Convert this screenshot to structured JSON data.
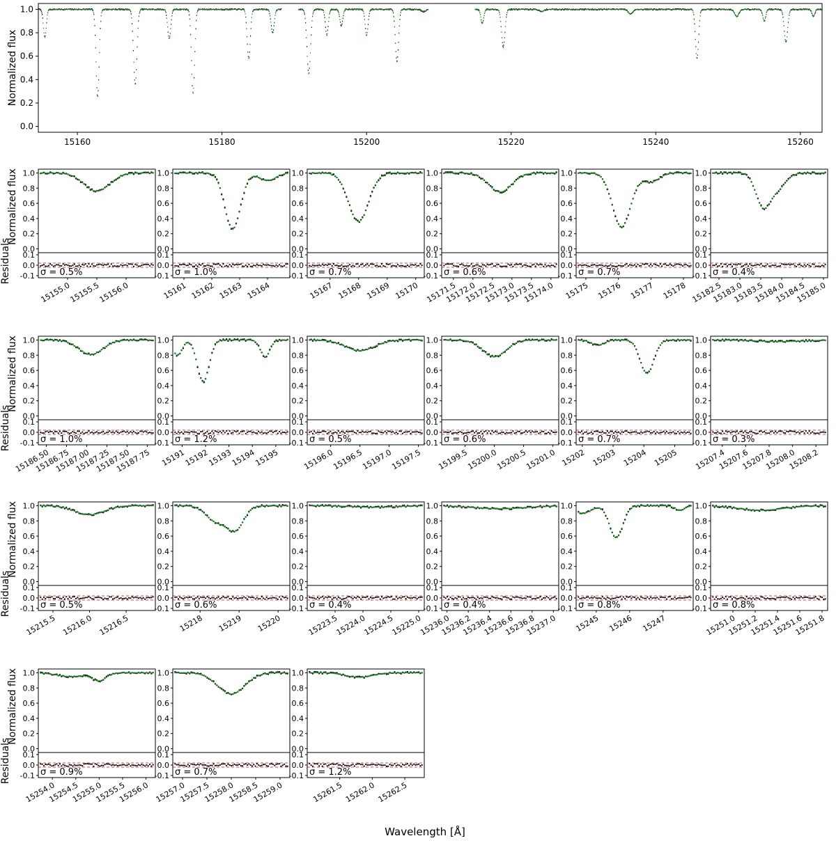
{
  "figure": {
    "xlabel": "Wavelength [Å]",
    "top_ylabel": "Normalized flux",
    "panel_ylabel_flux": "Normalized flux",
    "panel_ylabel_resid": "Residuals"
  },
  "colors": {
    "observed": "#000000",
    "model": "#1a8a1a",
    "threshold": "#e64545",
    "zero_line": "#555555"
  },
  "chart_data": [
    {
      "type": "scatter",
      "title": "",
      "xlabel": "",
      "ylabel": "Normalized flux",
      "xlim": [
        15154.6,
        15263.0
      ],
      "ylim": [
        -0.05,
        1.05
      ],
      "xticks": [
        15160,
        15180,
        15200,
        15220,
        15240,
        15260
      ],
      "yticks": [
        0.0,
        0.2,
        0.4,
        0.6,
        0.8,
        1.0
      ],
      "segments": [
        [
          15154.6,
          15188.2
        ],
        [
          15190.6,
          15208.5
        ],
        [
          15215.0,
          15263.0
        ]
      ],
      "lines": [
        {
          "center": 15155.5,
          "depth": 0.24,
          "width": 0.2
        },
        {
          "center": 15162.8,
          "depth": 0.74,
          "width": 0.22
        },
        {
          "center": 15168.0,
          "depth": 0.64,
          "width": 0.24
        },
        {
          "center": 15172.7,
          "depth": 0.25,
          "width": 0.22
        },
        {
          "center": 15176.0,
          "depth": 0.72,
          "width": 0.22
        },
        {
          "center": 15183.7,
          "depth": 0.42,
          "width": 0.22
        },
        {
          "center": 15187.0,
          "depth": 0.2,
          "width": 0.22
        },
        {
          "center": 15192.0,
          "depth": 0.55,
          "width": 0.25
        },
        {
          "center": 15194.5,
          "depth": 0.22,
          "width": 0.2
        },
        {
          "center": 15196.5,
          "depth": 0.14,
          "width": 0.2
        },
        {
          "center": 15200.0,
          "depth": 0.22,
          "width": 0.2
        },
        {
          "center": 15204.2,
          "depth": 0.45,
          "width": 0.22
        },
        {
          "center": 15207.9,
          "depth": 0.02,
          "width": 0.3
        },
        {
          "center": 15216.0,
          "depth": 0.12,
          "width": 0.2
        },
        {
          "center": 15218.9,
          "depth": 0.32,
          "width": 0.24
        },
        {
          "center": 15224.2,
          "depth": 0.02,
          "width": 0.3
        },
        {
          "center": 15236.5,
          "depth": 0.04,
          "width": 0.3
        },
        {
          "center": 15245.7,
          "depth": 0.42,
          "width": 0.22
        },
        {
          "center": 15251.2,
          "depth": 0.06,
          "width": 0.3
        },
        {
          "center": 15255.0,
          "depth": 0.1,
          "width": 0.2
        },
        {
          "center": 15258.0,
          "depth": 0.28,
          "width": 0.24
        },
        {
          "center": 15261.8,
          "depth": 0.06,
          "width": 0.2
        }
      ]
    },
    {
      "type": "scatter",
      "panel": 1,
      "xlim": [
        15154.5,
        15156.5
      ],
      "xticks": [
        15155.0,
        15155.5,
        15156.0
      ],
      "xtick_labels": [
        "15155.0",
        "15155.5",
        "15156.0"
      ],
      "sigma_label": "σ = 0.5%",
      "lines": [
        {
          "center": 15155.5,
          "depth": 0.24,
          "width": 0.22
        }
      ]
    },
    {
      "type": "scatter",
      "panel": 2,
      "xlim": [
        15160.6,
        15164.8
      ],
      "xticks": [
        15161,
        15162,
        15163,
        15164
      ],
      "xtick_labels": [
        "15161",
        "15162",
        "15163",
        "15164"
      ],
      "sigma_label": "σ = 1.0%",
      "lines": [
        {
          "center": 15162.75,
          "depth": 0.74,
          "width": 0.28
        },
        {
          "center": 15164.0,
          "depth": 0.1,
          "width": 0.3
        }
      ]
    },
    {
      "type": "scatter",
      "panel": 3,
      "xlim": [
        15166.2,
        15170.3
      ],
      "xticks": [
        15167,
        15168,
        15169,
        15170
      ],
      "xtick_labels": [
        "15167",
        "15168",
        "15169",
        "15170"
      ],
      "sigma_label": "σ = 0.7%",
      "lines": [
        {
          "center": 15168.0,
          "depth": 0.64,
          "width": 0.35
        }
      ]
    },
    {
      "type": "scatter",
      "panel": 4,
      "xlim": [
        15171.2,
        15174.2
      ],
      "xticks": [
        15171.5,
        15172.0,
        15172.5,
        15173.0,
        15173.5,
        15174.0
      ],
      "xtick_labels": [
        "15171.5",
        "15172.0",
        "15172.5",
        "15173.0",
        "15173.5",
        "15174.0"
      ],
      "sigma_label": "σ = 0.6%",
      "lines": [
        {
          "center": 15172.7,
          "depth": 0.25,
          "width": 0.3
        }
      ]
    },
    {
      "type": "scatter",
      "panel": 5,
      "xlim": [
        15174.7,
        15178.3
      ],
      "xticks": [
        15175,
        15176,
        15177,
        15178
      ],
      "xtick_labels": [
        "15175",
        "15176",
        "15177",
        "15178"
      ],
      "sigma_label": "σ = 0.7%",
      "lines": [
        {
          "center": 15176.1,
          "depth": 0.71,
          "width": 0.28
        },
        {
          "center": 15177.0,
          "depth": 0.12,
          "width": 0.25
        }
      ]
    },
    {
      "type": "scatter",
      "panel": 6,
      "xlim": [
        15182.3,
        15185.1
      ],
      "xticks": [
        15182.5,
        15183.0,
        15183.5,
        15184.0,
        15184.5,
        15185.0
      ],
      "xtick_labels": [
        "15182.5",
        "15183.0",
        "15183.5",
        "15184.0",
        "15184.5",
        "15185.0"
      ],
      "sigma_label": "σ = 0.4%",
      "lines": [
        {
          "center": 15183.55,
          "depth": 0.42,
          "width": 0.17
        },
        {
          "center": 15183.9,
          "depth": 0.2,
          "width": 0.2
        }
      ]
    },
    {
      "type": "scatter",
      "panel": 7,
      "xlim": [
        15186.4,
        15187.85
      ],
      "xticks": [
        15186.5,
        15186.75,
        15187.0,
        15187.25,
        15187.5,
        15187.75
      ],
      "xtick_labels": [
        "15186.50",
        "15186.75",
        "15187.00",
        "15187.25",
        "15187.50",
        "15187.75"
      ],
      "sigma_label": "σ = 1.0%",
      "lines": [
        {
          "center": 15187.05,
          "depth": 0.19,
          "width": 0.15
        }
      ]
    },
    {
      "type": "scatter",
      "panel": 8,
      "xlim": [
        15190.6,
        15195.6
      ],
      "xticks": [
        15191,
        15192,
        15193,
        15194,
        15195
      ],
      "xtick_labels": [
        "15191",
        "15192",
        "15193",
        "15194",
        "15195"
      ],
      "sigma_label": "σ = 1.2%",
      "lines": [
        {
          "center": 15191.9,
          "depth": 0.55,
          "width": 0.25
        },
        {
          "center": 15194.55,
          "depth": 0.22,
          "width": 0.2
        },
        {
          "center": 15190.8,
          "depth": 0.2,
          "width": 0.2
        }
      ]
    },
    {
      "type": "scatter",
      "panel": 9,
      "xlim": [
        15195.6,
        15197.6
      ],
      "xticks": [
        15196.0,
        15196.5,
        15197.0,
        15197.5
      ],
      "xtick_labels": [
        "15196.0",
        "15196.5",
        "15197.0",
        "15197.5"
      ],
      "sigma_label": "σ = 0.5%",
      "lines": [
        {
          "center": 15196.5,
          "depth": 0.14,
          "width": 0.25
        }
      ]
    },
    {
      "type": "scatter",
      "panel": 10,
      "xlim": [
        15199.1,
        15201.1
      ],
      "xticks": [
        15199.5,
        15200.0,
        15200.5,
        15201.0
      ],
      "xtick_labels": [
        "15199.5",
        "15200.0",
        "15200.5",
        "15201.0"
      ],
      "sigma_label": "σ = 0.6%",
      "lines": [
        {
          "center": 15200.0,
          "depth": 0.22,
          "width": 0.2
        }
      ]
    },
    {
      "type": "scatter",
      "panel": 11,
      "xlim": [
        15201.8,
        15205.6
      ],
      "xticks": [
        15202,
        15203,
        15204,
        15205
      ],
      "xtick_labels": [
        "15202",
        "15203",
        "15204",
        "15205"
      ],
      "sigma_label": "σ = 0.7%",
      "lines": [
        {
          "center": 15204.1,
          "depth": 0.44,
          "width": 0.22
        },
        {
          "center": 15202.5,
          "depth": 0.07,
          "width": 0.2
        }
      ]
    },
    {
      "type": "scatter",
      "panel": 12,
      "xlim": [
        15207.3,
        15208.3
      ],
      "xticks": [
        15207.4,
        15207.6,
        15207.8,
        15208.0,
        15208.2
      ],
      "xtick_labels": [
        "15207.4",
        "15207.6",
        "15207.8",
        "15208.0",
        "15208.2"
      ],
      "sigma_label": "σ = 0.3%",
      "lines": [
        {
          "center": 15207.9,
          "depth": 0.02,
          "width": 0.2
        }
      ]
    },
    {
      "type": "scatter",
      "panel": 13,
      "xlim": [
        15215.3,
        15216.9
      ],
      "xticks": [
        15215.5,
        15216.0,
        15216.5
      ],
      "xtick_labels": [
        "15215.5",
        "15216.0",
        "15216.5"
      ],
      "sigma_label": "σ = 0.5%",
      "lines": [
        {
          "center": 15216.0,
          "depth": 0.12,
          "width": 0.2
        }
      ]
    },
    {
      "type": "scatter",
      "panel": 14,
      "xlim": [
        15217.3,
        15220.3
      ],
      "xticks": [
        15218,
        15219,
        15220
      ],
      "xtick_labels": [
        "15218",
        "15219",
        "15220"
      ],
      "sigma_label": "σ = 0.6%",
      "lines": [
        {
          "center": 15218.9,
          "depth": 0.31,
          "width": 0.22
        },
        {
          "center": 15218.4,
          "depth": 0.2,
          "width": 0.25
        }
      ]
    },
    {
      "type": "scatter",
      "panel": 15,
      "xlim": [
        15223.0,
        15225.1
      ],
      "xticks": [
        15223.5,
        15224.0,
        15224.5,
        15225.0
      ],
      "xtick_labels": [
        "15223.5",
        "15224.0",
        "15224.5",
        "15225.0"
      ],
      "sigma_label": "σ = 0.4%",
      "lines": [
        {
          "center": 15224.2,
          "depth": 0.02,
          "width": 0.4
        }
      ]
    },
    {
      "type": "scatter",
      "panel": 16,
      "xlim": [
        15235.95,
        15237.05
      ],
      "xticks": [
        15236.0,
        15236.2,
        15236.4,
        15236.6,
        15236.8,
        15237.0
      ],
      "xtick_labels": [
        "15236.0",
        "15236.2",
        "15236.4",
        "15236.6",
        "15236.8",
        "15237.0"
      ],
      "sigma_label": "σ = 0.4%",
      "lines": [
        {
          "center": 15236.5,
          "depth": 0.04,
          "width": 0.25
        }
      ]
    },
    {
      "type": "scatter",
      "panel": 17,
      "xlim": [
        15244.4,
        15247.9
      ],
      "xticks": [
        15245,
        15246,
        15247
      ],
      "xtick_labels": [
        "15245",
        "15246",
        "15247"
      ],
      "sigma_label": "σ = 0.8%",
      "lines": [
        {
          "center": 15245.6,
          "depth": 0.42,
          "width": 0.2
        },
        {
          "center": 15244.6,
          "depth": 0.1,
          "width": 0.25
        },
        {
          "center": 15247.5,
          "depth": 0.06,
          "width": 0.15
        }
      ]
    },
    {
      "type": "scatter",
      "panel": 18,
      "xlim": [
        15250.8,
        15251.85
      ],
      "xticks": [
        15251.0,
        15251.2,
        15251.4,
        15251.6,
        15251.8
      ],
      "xtick_labels": [
        "15251.0",
        "15251.2",
        "15251.4",
        "15251.6",
        "15251.8"
      ],
      "sigma_label": "σ = 0.8%",
      "lines": [
        {
          "center": 15251.25,
          "depth": 0.06,
          "width": 0.2
        }
      ]
    },
    {
      "type": "scatter",
      "panel": 19,
      "xlim": [
        15253.7,
        15256.2
      ],
      "xticks": [
        15254.0,
        15254.5,
        15255.0,
        15255.5,
        15256.0
      ],
      "xtick_labels": [
        "15254.0",
        "15254.5",
        "15255.0",
        "15255.5",
        "15256.0"
      ],
      "sigma_label": "σ = 0.9%",
      "lines": [
        {
          "center": 15255.0,
          "depth": 0.1,
          "width": 0.15
        },
        {
          "center": 15254.4,
          "depth": 0.05,
          "width": 0.3
        }
      ]
    },
    {
      "type": "scatter",
      "panel": 20,
      "xlim": [
        15256.8,
        15259.2
      ],
      "xticks": [
        15257.0,
        15257.5,
        15258.0,
        15258.5,
        15259.0
      ],
      "xtick_labels": [
        "15257.0",
        "15257.5",
        "15258.0",
        "15258.5",
        "15259.0"
      ],
      "sigma_label": "σ = 0.7%",
      "lines": [
        {
          "center": 15258.0,
          "depth": 0.28,
          "width": 0.28
        }
      ]
    },
    {
      "type": "scatter",
      "panel": 21,
      "xlim": [
        15261.0,
        15262.8
      ],
      "xticks": [
        15261.5,
        15262.0,
        15262.5
      ],
      "xtick_labels": [
        "15261.5",
        "15262.0",
        "15262.5"
      ],
      "sigma_label": "σ = 1.2%",
      "lines": [
        {
          "center": 15261.8,
          "depth": 0.06,
          "width": 0.2
        }
      ]
    }
  ],
  "panel_axes": {
    "flux_ylim": [
      -0.05,
      1.05
    ],
    "flux_yticks": [
      0.0,
      0.2,
      0.4,
      0.6,
      0.8,
      1.0
    ],
    "resid_ylim": [
      -0.12,
      0.12
    ],
    "resid_yticks": [
      -0.1,
      0.0,
      0.1
    ],
    "resid_threshold": 0.02
  }
}
